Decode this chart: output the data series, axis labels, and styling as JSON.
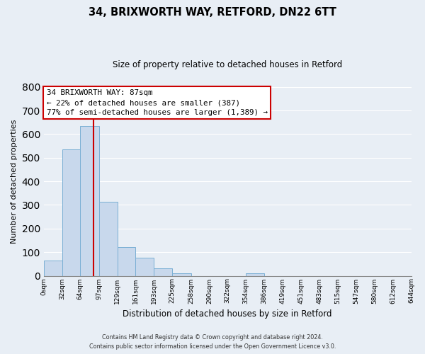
{
  "title": "34, BRIXWORTH WAY, RETFORD, DN22 6TT",
  "subtitle": "Size of property relative to detached houses in Retford",
  "xlabel": "Distribution of detached houses by size in Retford",
  "ylabel": "Number of detached properties",
  "bar_edges": [
    0,
    32,
    64,
    97,
    129,
    161,
    193,
    225,
    258,
    290,
    322,
    354,
    386,
    419,
    451,
    483,
    515,
    547,
    580,
    612,
    644
  ],
  "bar_heights": [
    65,
    535,
    635,
    312,
    122,
    76,
    32,
    12,
    0,
    0,
    0,
    10,
    0,
    0,
    0,
    0,
    0,
    0,
    0,
    0
  ],
  "bar_color": "#c8d8ec",
  "bar_edgecolor": "#7aafd4",
  "property_line_x": 87,
  "property_line_color": "#cc0000",
  "ylim": [
    0,
    800
  ],
  "yticks": [
    0,
    100,
    200,
    300,
    400,
    500,
    600,
    700,
    800
  ],
  "x_tick_labels": [
    "0sqm",
    "32sqm",
    "64sqm",
    "97sqm",
    "129sqm",
    "161sqm",
    "193sqm",
    "225sqm",
    "258sqm",
    "290sqm",
    "322sqm",
    "354sqm",
    "386sqm",
    "419sqm",
    "451sqm",
    "483sqm",
    "515sqm",
    "547sqm",
    "580sqm",
    "612sqm",
    "644sqm"
  ],
  "annotation_line1": "34 BRIXWORTH WAY: 87sqm",
  "annotation_line2": "← 22% of detached houses are smaller (387)",
  "annotation_line3": "77% of semi-detached houses are larger (1,389) →",
  "footer1": "Contains HM Land Registry data © Crown copyright and database right 2024.",
  "footer2": "Contains public sector information licensed under the Open Government Licence v3.0.",
  "box_facecolor": "#ffffff",
  "box_edgecolor": "#cc0000",
  "background_color": "#e8eef5",
  "grid_color": "#ffffff",
  "title_fontsize": 10.5,
  "subtitle_fontsize": 8.5,
  "ylabel_fontsize": 8,
  "xlabel_fontsize": 8.5,
  "tick_fontsize": 6.5,
  "footer_fontsize": 5.8,
  "annotation_fontsize": 7.8
}
